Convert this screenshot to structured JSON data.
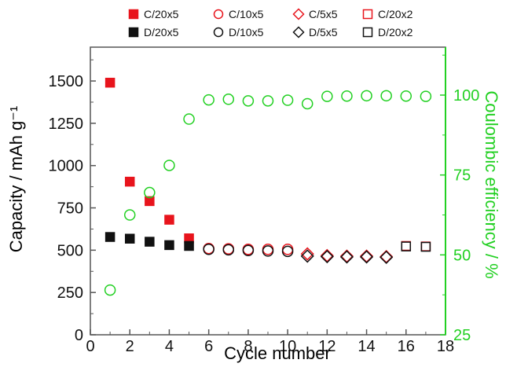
{
  "chart_data": {
    "type": "scatter",
    "xlabel": "Cycle number",
    "ylabel": "Capacity / mAh g⁻¹",
    "y2label": "Coulombic efficiency / %",
    "xlim": [
      0,
      18
    ],
    "ylim": [
      0,
      1700
    ],
    "y2lim": [
      25,
      115
    ],
    "x_ticks": [
      "0",
      "2",
      "4",
      "6",
      "8",
      "10",
      "12",
      "14",
      "16",
      "18"
    ],
    "y_ticks": [
      "0",
      "250",
      "500",
      "750",
      "1000",
      "1250",
      "1500"
    ],
    "y2_ticks": [
      "25",
      "50",
      "75",
      "100"
    ],
    "grid": false,
    "legend_position": "top",
    "colors": {
      "charge": "#e8141c",
      "discharge": "#111111",
      "efficiency": "#22d022",
      "frame": "#555555"
    },
    "series": [
      {
        "name": "C/20x5",
        "role": "charge",
        "marker": "square",
        "filled": true,
        "x": [
          1,
          2,
          3,
          4,
          5
        ],
        "y": [
          1490,
          905,
          790,
          680,
          570
        ]
      },
      {
        "name": "D/20x5",
        "role": "discharge",
        "marker": "square",
        "filled": true,
        "x": [
          1,
          2,
          3,
          4,
          5
        ],
        "y": [
          578,
          568,
          550,
          530,
          525
        ]
      },
      {
        "name": "C/10x5",
        "role": "charge",
        "marker": "circle",
        "filled": false,
        "x": [
          6,
          7,
          8,
          9,
          10
        ],
        "y": [
          510,
          508,
          505,
          505,
          505
        ]
      },
      {
        "name": "D/10x5",
        "role": "discharge",
        "marker": "circle",
        "filled": false,
        "x": [
          6,
          7,
          8,
          9,
          10
        ],
        "y": [
          505,
          502,
          498,
          495,
          493
        ]
      },
      {
        "name": "C/5x5",
        "role": "charge",
        "marker": "diamond",
        "filled": false,
        "x": [
          11,
          12,
          13,
          14,
          15
        ],
        "y": [
          478,
          468,
          465,
          465,
          462
        ]
      },
      {
        "name": "D/5x5",
        "role": "discharge",
        "marker": "diamond",
        "filled": false,
        "x": [
          11,
          12,
          13,
          14,
          15
        ],
        "y": [
          465,
          462,
          460,
          460,
          458
        ]
      },
      {
        "name": "C/20x2",
        "role": "charge",
        "marker": "square",
        "filled": false,
        "x": [
          16,
          17
        ],
        "y": [
          525,
          522
        ]
      },
      {
        "name": "D/20x2",
        "role": "discharge",
        "marker": "square",
        "filled": false,
        "x": [
          16,
          17
        ],
        "y": [
          522,
          520
        ]
      },
      {
        "role": "efficiency",
        "axis": "right",
        "marker": "circle",
        "filled": false,
        "x": [
          1,
          2,
          3,
          4,
          5,
          6,
          7,
          8,
          9,
          10,
          11,
          12,
          13,
          14,
          15,
          16,
          17
        ],
        "y": [
          39,
          62.5,
          69.5,
          78,
          92.5,
          98.5,
          98.7,
          98.2,
          98.2,
          98.4,
          97.3,
          99.6,
          99.7,
          99.8,
          99.8,
          99.7,
          99.6
        ]
      }
    ]
  }
}
